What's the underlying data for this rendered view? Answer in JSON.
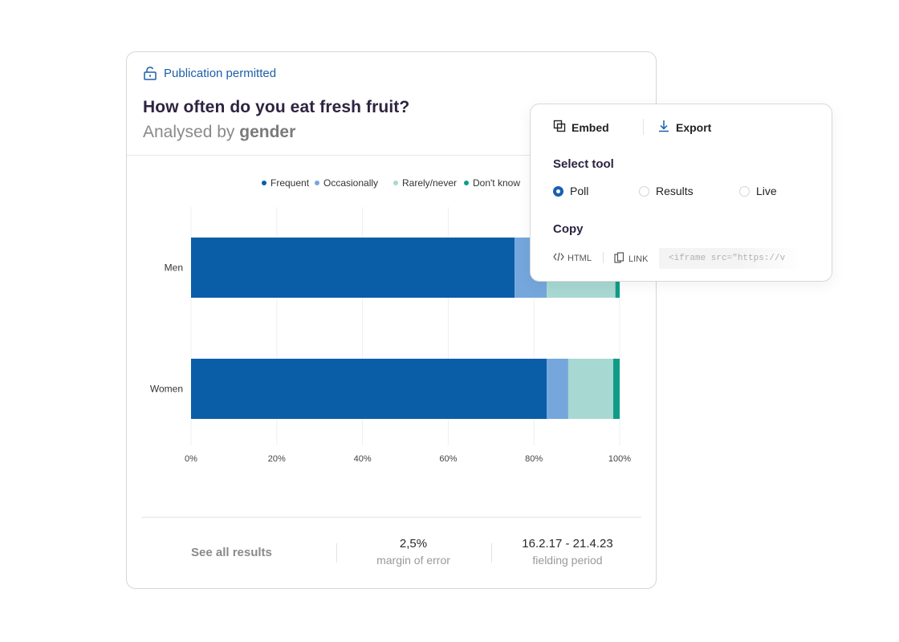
{
  "card": {
    "publication": "Publication permitted",
    "title": "How often do you eat fresh fruit?",
    "subtitle_prefix": "Analysed by",
    "subtitle_strong": "gender"
  },
  "footer": {
    "see_all": "See all results",
    "margin_value": "2,5%",
    "margin_label": "margin of error",
    "period_value": "16.2.17 - 21.4.23",
    "period_label": "fielding period"
  },
  "popup": {
    "tab_embed": "Embed",
    "tab_export": "Export",
    "select_tool": "Select tool",
    "options": [
      "Poll",
      "Results",
      "Live"
    ],
    "selected": "Poll",
    "copy": "Copy",
    "copy_html": "HTML",
    "copy_link": "LINK",
    "code_snippet": "<iframe src=\"https://v"
  },
  "chart_data": {
    "type": "bar",
    "orientation": "horizontal",
    "stacked": true,
    "categories": [
      "Men",
      "Women"
    ],
    "series": [
      {
        "name": "Frequent",
        "color": "#0a5ea8",
        "values": [
          75.5,
          83
        ]
      },
      {
        "name": "Occasionally",
        "color": "#75a7dc",
        "values": [
          7.5,
          5
        ]
      },
      {
        "name": "Rarely/never",
        "color": "#a8d8d2",
        "values": [
          16,
          10.5
        ]
      },
      {
        "name": "Don't know",
        "color": "#0f9c87",
        "values": [
          1,
          1.5
        ]
      }
    ],
    "xticks": [
      "0%",
      "20%",
      "40%",
      "60%",
      "80%",
      "100%"
    ],
    "xlim": [
      0,
      100
    ],
    "legend": "top-center",
    "grid": true
  }
}
